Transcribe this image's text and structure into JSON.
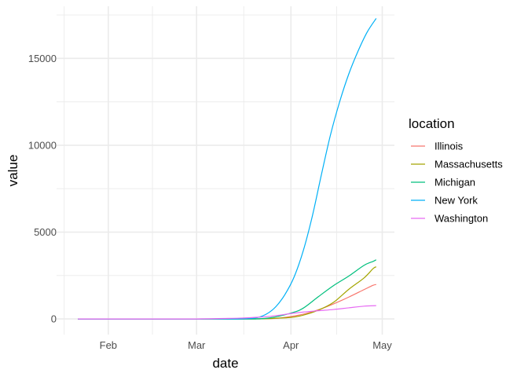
{
  "chart_data": {
    "type": "line",
    "xlabel": "date",
    "ylabel": "value",
    "x_ticks": [
      "Feb",
      "Mar",
      "Apr",
      "May"
    ],
    "x_tick_dates": [
      "2020-02-01",
      "2020-03-01",
      "2020-04-01",
      "2020-05-01"
    ],
    "xlim": [
      "2020-01-15",
      "2020-05-05"
    ],
    "y_ticks": [
      0,
      5000,
      10000,
      15000
    ],
    "ylim": [
      -900,
      18000
    ],
    "grid": true,
    "legend": {
      "title": "location",
      "position": "right"
    },
    "series": [
      {
        "name": "Illinois",
        "color": "#F8766D",
        "points": [
          [
            "2020-01-22",
            0
          ],
          [
            "2020-03-10",
            0
          ],
          [
            "2020-03-17",
            1
          ],
          [
            "2020-03-22",
            12
          ],
          [
            "2020-03-27",
            34
          ],
          [
            "2020-04-01",
            141
          ],
          [
            "2020-04-05",
            274
          ],
          [
            "2020-04-10",
            528
          ],
          [
            "2020-04-15",
            868
          ],
          [
            "2020-04-20",
            1259
          ],
          [
            "2020-04-25",
            1688
          ],
          [
            "2020-04-28",
            1938
          ],
          [
            "2020-04-29",
            1983
          ]
        ]
      },
      {
        "name": "Massachusetts",
        "color": "#A3A500",
        "points": [
          [
            "2020-01-22",
            0
          ],
          [
            "2020-03-15",
            0
          ],
          [
            "2020-03-20",
            1
          ],
          [
            "2020-03-25",
            25
          ],
          [
            "2020-04-01",
            89
          ],
          [
            "2020-04-05",
            216
          ],
          [
            "2020-04-10",
            503
          ],
          [
            "2020-04-15",
            957
          ],
          [
            "2020-04-20",
            1706
          ],
          [
            "2020-04-25",
            2360
          ],
          [
            "2020-04-28",
            2899
          ],
          [
            "2020-04-29",
            3003
          ]
        ]
      },
      {
        "name": "Michigan",
        "color": "#00BF7D",
        "points": [
          [
            "2020-01-22",
            0
          ],
          [
            "2020-03-17",
            0
          ],
          [
            "2020-03-20",
            4
          ],
          [
            "2020-03-25",
            60
          ],
          [
            "2020-04-01",
            337
          ],
          [
            "2020-04-05",
            617
          ],
          [
            "2020-04-10",
            1281
          ],
          [
            "2020-04-15",
            1921
          ],
          [
            "2020-04-20",
            2468
          ],
          [
            "2020-04-25",
            3085
          ],
          [
            "2020-04-28",
            3315
          ],
          [
            "2020-04-29",
            3407
          ]
        ]
      },
      {
        "name": "New York",
        "color": "#00B0F6",
        "points": [
          [
            "2020-01-22",
            0
          ],
          [
            "2020-03-10",
            0
          ],
          [
            "2020-03-14",
            2
          ],
          [
            "2020-03-18",
            22
          ],
          [
            "2020-03-21",
            80
          ],
          [
            "2020-03-24",
            285
          ],
          [
            "2020-03-27",
            700
          ],
          [
            "2020-03-30",
            1400
          ],
          [
            "2020-04-02",
            2400
          ],
          [
            "2020-04-05",
            3900
          ],
          [
            "2020-04-08",
            5900
          ],
          [
            "2020-04-11",
            8300
          ],
          [
            "2020-04-14",
            10600
          ],
          [
            "2020-04-17",
            12500
          ],
          [
            "2020-04-20",
            14100
          ],
          [
            "2020-04-23",
            15400
          ],
          [
            "2020-04-26",
            16500
          ],
          [
            "2020-04-29",
            17300
          ]
        ]
      },
      {
        "name": "Washington",
        "color": "#E76BF3",
        "points": [
          [
            "2020-01-22",
            0
          ],
          [
            "2020-02-28",
            0
          ],
          [
            "2020-03-01",
            2
          ],
          [
            "2020-03-05",
            11
          ],
          [
            "2020-03-10",
            27
          ],
          [
            "2020-03-15",
            46
          ],
          [
            "2020-03-20",
            90
          ],
          [
            "2020-03-25",
            149
          ],
          [
            "2020-04-01",
            310
          ],
          [
            "2020-04-05",
            395
          ],
          [
            "2020-04-10",
            472
          ],
          [
            "2020-04-15",
            545
          ],
          [
            "2020-04-20",
            640
          ],
          [
            "2020-04-25",
            736
          ],
          [
            "2020-04-29",
            766
          ]
        ]
      }
    ]
  }
}
